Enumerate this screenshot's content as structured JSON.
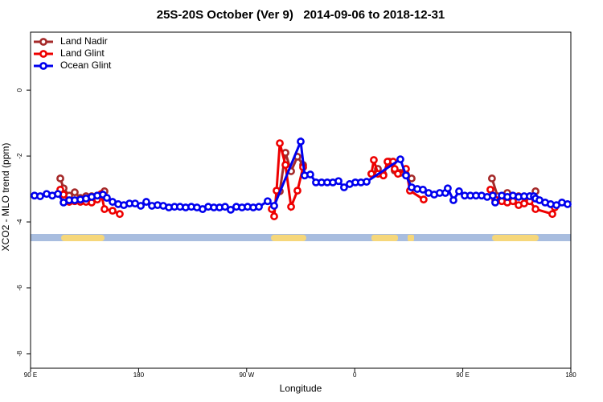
{
  "chart_data": {
    "type": "line",
    "title": "25S-20S October (Ver 9)   2014-09-06 to 2018-12-31",
    "xlabel": "Longitude",
    "ylabel": "XCO2 - MLO trend (ppm)",
    "xlim": [
      90,
      540
    ],
    "xticks": [
      {
        "value": 90,
        "label": "90 E"
      },
      {
        "value": 180,
        "label": "180"
      },
      {
        "value": 270,
        "label": "90 W"
      },
      {
        "value": 360,
        "label": "0"
      },
      {
        "value": 450,
        "label": "90 E"
      },
      {
        "value": 540,
        "label": "180"
      }
    ],
    "ylim": [
      -8.44,
      1.76
    ],
    "yticks": [
      0,
      -2,
      -4,
      -6,
      -8
    ],
    "legend": "top-left",
    "series": [
      {
        "name": "Land Nadir",
        "color": "#a52a2a",
        "x": [
          114.8,
          117.5,
          122.2,
          126.8,
          131.5,
          136.2,
          140.9,
          145.6,
          151.6,
          null,
          297.6,
          302.3,
          307.0,
          312.3,
          317.0,
          null,
          373.9,
          379.3,
          383.9,
          388.6,
          393.3,
          398.0,
          402.7,
          407.4,
          null,
          474.3,
          479.0,
          482.5,
          487.1,
          491.8,
          496.5,
          501.1,
          505.8,
          510.6
        ],
        "values": [
          -2.68,
          -2.98,
          -3.2,
          -3.1,
          -3.27,
          -3.22,
          -3.22,
          -3.2,
          -3.07,
          null,
          -3.07,
          -1.9,
          -2.46,
          -2.02,
          -2.27,
          null,
          -2.54,
          -2.39,
          -2.56,
          -2.17,
          -2.44,
          -2.51,
          -2.56,
          -2.68,
          null,
          -2.68,
          -3.22,
          -3.22,
          -3.12,
          -3.22,
          -3.22,
          -3.24,
          -3.22,
          -3.07
        ]
      },
      {
        "name": "Land Glint",
        "color": "#ee0000",
        "x": [
          114.8,
          117.5,
          122.2,
          126.8,
          131.5,
          136.2,
          140.9,
          145.6,
          148.9,
          151.6,
          158.3,
          164.3,
          null,
          290.9,
          292.9,
          294.9,
          297.6,
          302.3,
          307.0,
          312.3,
          317.0,
          null,
          373.9,
          375.9,
          379.3,
          383.9,
          387.3,
          392.0,
          393.3,
          396.0,
          402.7,
          406.0,
          417.4,
          null,
          473.0,
          477.0,
          482.5,
          487.1,
          491.8,
          496.5,
          501.1,
          505.8,
          510.6,
          524.6,
          526.6
        ],
        "values": [
          -3.02,
          -3.17,
          -3.39,
          -3.37,
          -3.39,
          -3.39,
          -3.41,
          -3.32,
          -3.15,
          -3.61,
          -3.66,
          -3.76,
          null,
          -3.61,
          -3.83,
          -3.05,
          -1.61,
          -2.27,
          -3.54,
          -3.05,
          -2.34,
          null,
          -2.54,
          -2.12,
          -2.54,
          -2.59,
          -2.17,
          -2.17,
          -2.39,
          -2.54,
          -2.39,
          -3.05,
          -3.32,
          null,
          -3.02,
          -3.32,
          -3.37,
          -3.41,
          -3.37,
          -3.49,
          -3.44,
          -3.37,
          -3.61,
          -3.76,
          -3.56
        ]
      },
      {
        "name": "Ocean Glint",
        "color": "#0000ee",
        "x": [
          93.3,
          98.0,
          103.4,
          108.1,
          112.8,
          117.5,
          122.2,
          126.8,
          131.5,
          136.2,
          140.9,
          145.6,
          150.3,
          153.6,
          158.3,
          163.0,
          167.7,
          172.4,
          177.1,
          181.8,
          186.4,
          191.1,
          195.8,
          200.5,
          205.2,
          209.9,
          214.5,
          219.2,
          223.9,
          228.6,
          233.3,
          238.0,
          242.7,
          247.4,
          252.0,
          256.7,
          261.4,
          266.1,
          270.8,
          275.5,
          280.2,
          287.5,
          292.9,
          315.0,
          318.3,
          323.0,
          327.7,
          332.4,
          337.1,
          341.8,
          346.5,
          351.1,
          355.8,
          360.5,
          365.2,
          369.9,
          398.0,
          402.7,
          407.4,
          412.1,
          416.8,
          421.5,
          426.2,
          430.8,
          435.5,
          437.5,
          442.2,
          446.9,
          451.6,
          456.3,
          461.0,
          465.7,
          470.3,
          475.0,
          477.0,
          482.5,
          487.1,
          491.8,
          496.5,
          501.1,
          505.8,
          509.2,
          510.6,
          513.9,
          518.6,
          523.2,
          528.0,
          532.6,
          537.3
        ],
        "values": [
          -3.2,
          -3.22,
          -3.15,
          -3.2,
          -3.15,
          -3.41,
          -3.34,
          -3.34,
          -3.32,
          -3.29,
          -3.24,
          -3.2,
          -3.17,
          -3.27,
          -3.39,
          -3.46,
          -3.49,
          -3.44,
          -3.44,
          -3.51,
          -3.39,
          -3.51,
          -3.49,
          -3.51,
          -3.56,
          -3.54,
          -3.54,
          -3.56,
          -3.54,
          -3.56,
          -3.61,
          -3.54,
          -3.56,
          -3.56,
          -3.54,
          -3.63,
          -3.54,
          -3.56,
          -3.54,
          -3.56,
          -3.54,
          -3.37,
          -3.51,
          -1.56,
          -2.59,
          -2.56,
          -2.8,
          -2.8,
          -2.8,
          -2.8,
          -2.76,
          -2.95,
          -2.85,
          -2.8,
          -2.8,
          -2.78,
          -2.1,
          -2.59,
          -2.95,
          -3.0,
          -3.02,
          -3.12,
          -3.17,
          -3.12,
          -3.12,
          -2.98,
          -3.34,
          -3.07,
          -3.2,
          -3.2,
          -3.2,
          -3.2,
          -3.24,
          -3.2,
          -3.41,
          -3.2,
          -3.24,
          -3.2,
          -3.24,
          -3.22,
          -3.22,
          -3.22,
          -3.29,
          -3.34,
          -3.41,
          -3.46,
          -3.49,
          -3.41,
          -3.46
        ]
      }
    ]
  }
}
